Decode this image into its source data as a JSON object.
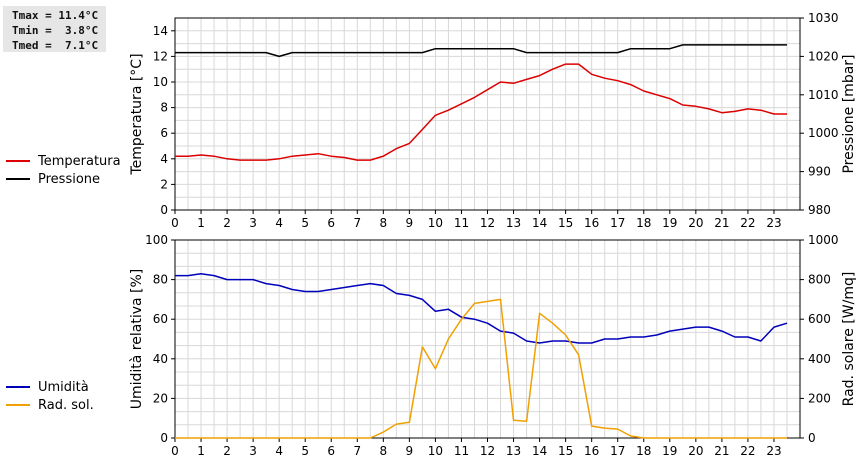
{
  "stats": {
    "tmax": "Tmax = 11.4°C",
    "tmin": "Tmin =  3.8°C",
    "tmed": "Tmed =  7.1°C"
  },
  "chart_data": [
    {
      "type": "line",
      "xlabel": "",
      "xlim": [
        0,
        24
      ],
      "x_ticks": [
        "0",
        "1",
        "2",
        "3",
        "4",
        "5",
        "6",
        "7",
        "8",
        "9",
        "10",
        "11",
        "12",
        "13",
        "14",
        "15",
        "16",
        "17",
        "18",
        "19",
        "20",
        "21",
        "22",
        "23"
      ],
      "grid": true,
      "ylabel_left": "Temperatura [°C]",
      "ylim_left": [
        0,
        15
      ],
      "yticks_left": [
        0,
        2,
        4,
        6,
        8,
        10,
        12,
        14
      ],
      "ylabel_right": "Pressione [mbar]",
      "ylim_right": [
        980,
        1030
      ],
      "yticks_right": [
        980,
        990,
        1000,
        1010,
        1020,
        1030
      ],
      "legend_position": "left",
      "series": [
        {
          "name": "Temperatura",
          "axis": "left",
          "color": "#dd0000",
          "x": [
            0,
            0.5,
            1,
            1.5,
            2,
            2.5,
            3,
            3.5,
            4,
            4.5,
            5,
            5.5,
            6,
            6.5,
            7,
            7.5,
            8,
            8.5,
            9,
            9.5,
            10,
            10.5,
            11,
            11.5,
            12,
            12.5,
            13,
            13.5,
            14,
            14.5,
            15,
            15.5,
            16,
            16.5,
            17,
            17.5,
            18,
            18.5,
            19,
            19.5,
            20,
            20.5,
            21,
            21.5,
            22,
            22.5,
            23,
            23.5
          ],
          "values": [
            4.2,
            4.2,
            4.3,
            4.2,
            4.0,
            3.9,
            3.9,
            3.9,
            4.0,
            4.2,
            4.3,
            4.4,
            4.2,
            4.1,
            3.9,
            3.9,
            4.2,
            4.8,
            5.2,
            6.3,
            7.4,
            7.8,
            8.3,
            8.8,
            9.4,
            10.0,
            9.9,
            10.2,
            10.5,
            11.0,
            11.4,
            11.4,
            10.6,
            10.3,
            10.1,
            9.8,
            9.3,
            9.0,
            8.7,
            8.2,
            8.1,
            7.9,
            7.6,
            7.7,
            7.9,
            7.8,
            7.5,
            7.5
          ]
        },
        {
          "name": "Pressione",
          "axis": "right",
          "color": "#000000",
          "x": [
            0,
            0.5,
            1,
            1.5,
            2,
            2.5,
            3,
            3.5,
            4,
            4.5,
            5,
            5.5,
            6,
            6.5,
            7,
            7.5,
            8,
            8.5,
            9,
            9.5,
            10,
            10.5,
            11,
            11.5,
            12,
            12.5,
            13,
            13.5,
            14,
            14.5,
            15,
            15.5,
            16,
            16.5,
            17,
            17.5,
            18,
            18.5,
            19,
            19.5,
            20,
            20.5,
            21,
            21.5,
            22,
            22.5,
            23,
            23.5
          ],
          "values": [
            1021,
            1021,
            1021,
            1021,
            1021,
            1021,
            1021,
            1021,
            1020,
            1021,
            1021,
            1021,
            1021,
            1021,
            1021,
            1021,
            1021,
            1021,
            1021,
            1021,
            1022,
            1022,
            1022,
            1022,
            1022,
            1022,
            1022,
            1021,
            1021,
            1021,
            1021,
            1021,
            1021,
            1021,
            1021,
            1022,
            1022,
            1022,
            1022,
            1023,
            1023,
            1023,
            1023,
            1023,
            1023,
            1023,
            1023,
            1023
          ]
        }
      ]
    },
    {
      "type": "line",
      "xlabel": "",
      "xlim": [
        0,
        24
      ],
      "x_ticks": [
        "0",
        "1",
        "2",
        "3",
        "4",
        "5",
        "6",
        "7",
        "8",
        "9",
        "10",
        "11",
        "12",
        "13",
        "14",
        "15",
        "16",
        "17",
        "18",
        "19",
        "20",
        "21",
        "22",
        "23"
      ],
      "grid": true,
      "ylabel_left": "Umidità relativa [%]",
      "ylim_left": [
        0,
        100
      ],
      "yticks_left": [
        0,
        20,
        40,
        60,
        80,
        100
      ],
      "ylabel_right": "Rad. solare [W/mq]",
      "ylim_right": [
        0,
        1000
      ],
      "yticks_right": [
        0,
        200,
        400,
        600,
        800,
        1000
      ],
      "legend_position": "left",
      "series": [
        {
          "name": "Umidità",
          "axis": "left",
          "color": "#0000bb",
          "x": [
            0,
            0.5,
            1,
            1.5,
            2,
            2.5,
            3,
            3.5,
            4,
            4.5,
            5,
            5.5,
            6,
            6.5,
            7,
            7.5,
            8,
            8.5,
            9,
            9.5,
            10,
            10.5,
            11,
            11.5,
            12,
            12.5,
            13,
            13.5,
            14,
            14.5,
            15,
            15.5,
            16,
            16.5,
            17,
            17.5,
            18,
            18.5,
            19,
            19.5,
            20,
            20.5,
            21,
            21.5,
            22,
            22.5,
            23,
            23.5
          ],
          "values": [
            82,
            82,
            83,
            82,
            80,
            80,
            80,
            78,
            77,
            75,
            74,
            74,
            75,
            76,
            77,
            78,
            77,
            73,
            72,
            70,
            64,
            65,
            61,
            60,
            58,
            54,
            53,
            49,
            48,
            49,
            49,
            48,
            48,
            50,
            50,
            51,
            51,
            52,
            54,
            55,
            56,
            56,
            54,
            51,
            51,
            49,
            56,
            58
          ]
        },
        {
          "name": "Rad. sol.",
          "axis": "right",
          "color": "#f0a000",
          "x": [
            0,
            1,
            2,
            3,
            4,
            5,
            6,
            7,
            7.5,
            8,
            8.5,
            9,
            9.5,
            10,
            10.5,
            11,
            11.5,
            12,
            12.5,
            13,
            13.5,
            14,
            14.5,
            15,
            15.5,
            16,
            16.5,
            17,
            17.5,
            18,
            19,
            20,
            21,
            22,
            23,
            23.5
          ],
          "values": [
            0,
            0,
            0,
            0,
            0,
            0,
            0,
            0,
            0,
            30,
            70,
            80,
            460,
            350,
            500,
            600,
            680,
            690,
            700,
            90,
            85,
            630,
            580,
            520,
            420,
            60,
            50,
            45,
            10,
            0,
            0,
            0,
            0,
            0,
            0,
            0
          ]
        }
      ]
    }
  ]
}
